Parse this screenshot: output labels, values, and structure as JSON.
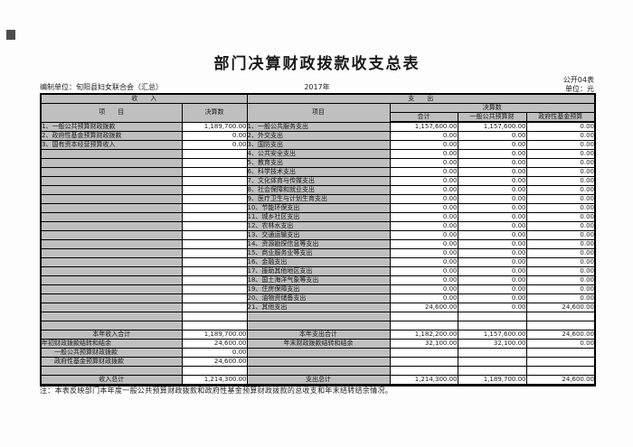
{
  "colors": {
    "cell_gray": "#bfbfbf",
    "border": "#000000",
    "page_bg": "#fdfdfd",
    "corner_mark": "#4d4d4d"
  },
  "header": {
    "title": "部门决算财政拨款收支总表",
    "form_no": "公开04表",
    "unit": "单位：元",
    "prepared_by": "编制单位：旬阳县妇女联合会（汇总）",
    "year": "2017年"
  },
  "table": {
    "col_headers": {
      "income_section": "收　　入",
      "expense_section": "支　　出",
      "income_item": "项　　目",
      "income_amount": "决算数",
      "expense_item": "项目",
      "expense_amount": "决算数",
      "expense_total": "合计",
      "expense_general": "一般公共预算财",
      "expense_fund": "政府性基金预算"
    },
    "rows": [
      {
        "cells": [
          "1、一般公共预算财政拨款",
          "1,189,700.00",
          "1、一般公共服务支出",
          "1,157,600.00",
          "1,157,600.00",
          "0.00"
        ]
      },
      {
        "cells": [
          "2、政府性基金预算财政拨款",
          "0.00",
          "2、外交支出",
          "0.00",
          "0.00",
          "0.00"
        ]
      },
      {
        "cells": [
          "3、国有资本经营预算收入",
          "0.00",
          "3、国防支出",
          "0.00",
          "0.00",
          "0.00"
        ]
      },
      {
        "cells": [
          "",
          "",
          "4、公共安全支出",
          "0.00",
          "0.00",
          "0.00"
        ]
      },
      {
        "cells": [
          "",
          "",
          "5、教育支出",
          "0.00",
          "0.00",
          "0.00"
        ]
      },
      {
        "cells": [
          "",
          "",
          "6、科学技术支出",
          "0.00",
          "0.00",
          "0.00"
        ]
      },
      {
        "cells": [
          "",
          "",
          "7、文化体育与传媒支出",
          "0.00",
          "0.00",
          "0.00"
        ]
      },
      {
        "cells": [
          "",
          "",
          "8、社会保障和就业支出",
          "0.00",
          "0.00",
          "0.00"
        ]
      },
      {
        "cells": [
          "",
          "",
          "9、医疗卫生与计划生育支出",
          "0.00",
          "0.00",
          "0.00"
        ]
      },
      {
        "cells": [
          "",
          "",
          "10、节能环保支出",
          "0.00",
          "0.00",
          "0.00"
        ]
      },
      {
        "cells": [
          "",
          "",
          "11、城乡社区支出",
          "0.00",
          "0.00",
          "0.00"
        ]
      },
      {
        "cells": [
          "",
          "",
          "12、农林水支出",
          "0.00",
          "0.00",
          "0.00"
        ]
      },
      {
        "cells": [
          "",
          "",
          "13、交通运输支出",
          "0.00",
          "0.00",
          "0.00"
        ]
      },
      {
        "cells": [
          "",
          "",
          "14、资源勘探信息等支出",
          "0.00",
          "0.00",
          "0.00"
        ]
      },
      {
        "cells": [
          "",
          "",
          "15、商业服务业等支出",
          "0.00",
          "0.00",
          "0.00"
        ]
      },
      {
        "cells": [
          "",
          "",
          "16、金融支出",
          "0.00",
          "0.00",
          "0.00"
        ]
      },
      {
        "cells": [
          "",
          "",
          "17、援助其他地区支出",
          "0.00",
          "0.00",
          "0.00"
        ]
      },
      {
        "cells": [
          "",
          "",
          "18、国土海洋气象等支出",
          "0.00",
          "0.00",
          "0.00"
        ]
      },
      {
        "cells": [
          "",
          "",
          "19、住房保障支出",
          "0.00",
          "0.00",
          "0.00"
        ]
      },
      {
        "cells": [
          "",
          "",
          "20、油物资储备支出",
          "0.00",
          "0.00",
          "0.00"
        ]
      },
      {
        "cells": [
          "",
          "",
          "21、其他支出",
          "24,600.00",
          "0.00",
          "24,600.00"
        ]
      },
      {
        "cells": [
          "",
          "",
          "",
          "",
          "",
          ""
        ]
      },
      {
        "cells": [
          "",
          "",
          "",
          "",
          "",
          ""
        ]
      },
      {
        "cells": [
          "本年收入合计",
          "1,189,700.00",
          "本年支出合计",
          "1,182,200.00",
          "1,157,600.00",
          "24,600.00"
        ],
        "align1": "center",
        "align3": "center"
      },
      {
        "cells": [
          "年初财政拨款结转和结余",
          "24,600.00",
          "年末财政拨款结转和结余",
          "32,100.00",
          "32,100.00",
          "0.00"
        ],
        "align3": "center"
      },
      {
        "cells": [
          "一般公共预算财政拨款",
          "0.00",
          "",
          "",
          "",
          ""
        ],
        "align1": "indent"
      },
      {
        "cells": [
          "政府性基金预算财政拨款",
          "24,600.00",
          "",
          "",
          "",
          ""
        ],
        "align1": "indent"
      },
      {
        "cells": [
          "",
          "",
          "",
          "",
          "",
          ""
        ]
      },
      {
        "cells": [
          "收入总计",
          "1,214,300.00",
          "支出总计",
          "1,214,300.00",
          "1,189,700.00",
          "24,600.00"
        ],
        "align1": "center",
        "align3": "center",
        "cls": "total-row"
      }
    ]
  },
  "note": "注：本表反映部门本年度一般公共预算财政拨款和政府性基金预算财政拨款的总收支和年末结转结余情况。"
}
